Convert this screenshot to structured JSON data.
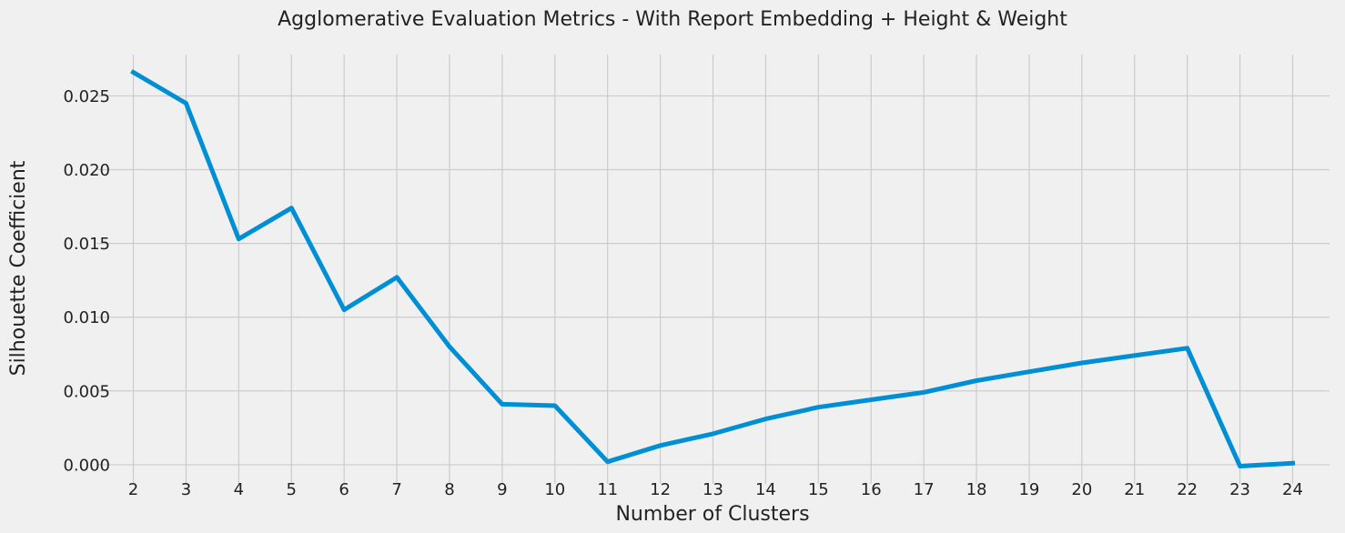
{
  "chart_data": {
    "type": "line",
    "title": "Agglomerative Evaluation Metrics - With Report Embedding + Height & Weight",
    "xlabel": "Number of Clusters",
    "ylabel": "Silhouette Coefficient",
    "x": [
      2,
      3,
      4,
      5,
      6,
      7,
      8,
      9,
      10,
      11,
      12,
      13,
      14,
      15,
      16,
      17,
      18,
      19,
      20,
      21,
      22,
      23,
      24
    ],
    "series": [
      {
        "values": [
          0.0266,
          0.0245,
          0.0153,
          0.0174,
          0.0105,
          0.0127,
          0.008,
          0.0041,
          0.004,
          0.0002,
          0.0013,
          0.0021,
          0.0031,
          0.0039,
          0.0044,
          0.0049,
          0.0057,
          0.0063,
          0.0069,
          0.0074,
          0.0079,
          -0.0001,
          0.0001
        ],
        "color": "#008fd5"
      }
    ],
    "xlim": [
      1.3,
      24.7
    ],
    "ylim": [
      -0.0013,
      0.0278
    ],
    "xticks": [
      "2",
      "3",
      "4",
      "5",
      "6",
      "7",
      "8",
      "9",
      "10",
      "11",
      "12",
      "13",
      "14",
      "15",
      "16",
      "17",
      "18",
      "19",
      "20",
      "21",
      "22",
      "23",
      "24"
    ],
    "yticks": [
      0.0,
      0.005,
      0.01,
      0.015,
      0.02,
      0.025
    ],
    "ytick_labels": [
      "0.000",
      "0.005",
      "0.010",
      "0.015",
      "0.020",
      "0.025"
    ],
    "grid": true,
    "legend": "none"
  }
}
